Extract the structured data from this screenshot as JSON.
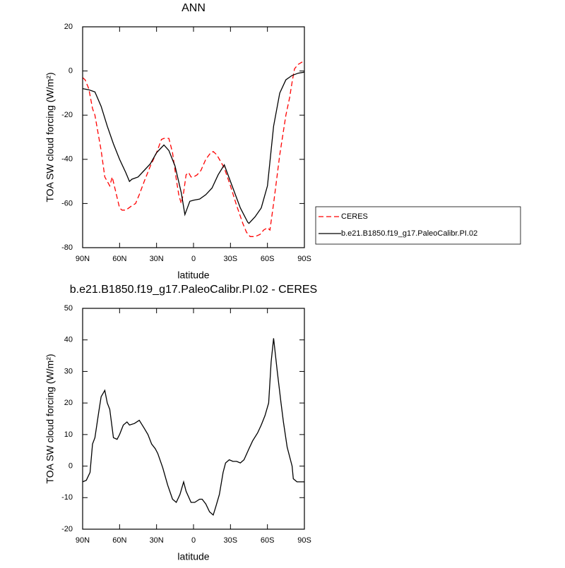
{
  "chart_data": [
    {
      "type": "line",
      "title": "ANN",
      "x_label": "latitude",
      "y_label": "TOA SW cloud forcing (W/m²)",
      "xlim": [
        90,
        -90
      ],
      "ylim": [
        20,
        -80
      ],
      "xticks": [
        {
          "value": 90,
          "label": "90N"
        },
        {
          "value": 60,
          "label": "60N"
        },
        {
          "value": 30,
          "label": "30N"
        },
        0,
        {
          "value": -30,
          "label": "30S"
        },
        {
          "value": -60,
          "label": "60S"
        },
        {
          "value": -90,
          "label": "90S"
        }
      ],
      "yticks": [
        20,
        0,
        -20,
        -40,
        -60,
        -80
      ],
      "legend": "right",
      "series": [
        {
          "name": "CERES",
          "color": "#ff0000",
          "dash": true,
          "x": [
            90,
            88,
            85,
            82,
            80,
            75,
            72,
            70,
            68,
            66,
            63,
            60,
            58,
            55,
            50,
            47,
            44,
            40,
            35,
            30,
            26,
            24,
            20,
            17,
            14,
            12,
            10,
            8,
            6,
            4,
            2,
            0,
            -3,
            -6,
            -10,
            -14,
            -16,
            -19,
            -22,
            -25,
            -30,
            -35,
            -40,
            -43,
            -46,
            -50,
            -54,
            -57,
            -60,
            -62,
            -65,
            -70,
            -75,
            -78,
            -80,
            -82,
            -85,
            -88,
            -90
          ],
          "values": [
            -3,
            -4,
            -8,
            -17,
            -20,
            -36,
            -48,
            -50,
            -52,
            -48,
            -55,
            -62,
            -63,
            -63,
            -61,
            -60,
            -56,
            -50,
            -43,
            -37,
            -31,
            -30.5,
            -30.5,
            -37,
            -49,
            -56,
            -60,
            -55,
            -47,
            -46,
            -48,
            -48,
            -47,
            -45,
            -40,
            -37,
            -36.5,
            -38,
            -41,
            -44,
            -52,
            -61,
            -69,
            -73,
            -75,
            -75,
            -74,
            -72,
            -71,
            -72,
            -60,
            -38,
            -20,
            -12,
            -5,
            1,
            3,
            4,
            4.5
          ]
        },
        {
          "name": "b.e21.B1850.f19_g17.PaleoCalibr.PI.02",
          "color": "#000000",
          "dash": false,
          "x": [
            90,
            85,
            80,
            75,
            70,
            65,
            60,
            55,
            52,
            50,
            45,
            40,
            35,
            30,
            24,
            20,
            15,
            10,
            7,
            5,
            3,
            0,
            -5,
            -10,
            -15,
            -20,
            -25,
            -30,
            -38,
            -44,
            -45,
            -50,
            -55,
            -60,
            -65,
            -70,
            -75,
            -80,
            -85,
            -90
          ],
          "values": [
            -8,
            -8.5,
            -9.5,
            -16,
            -25,
            -33,
            -40,
            -46,
            -50,
            -49,
            -48,
            -45,
            -42,
            -37,
            -33.5,
            -36,
            -43,
            -55,
            -65,
            -62,
            -59,
            -58.5,
            -58,
            -56,
            -53,
            -47,
            -42.5,
            -50,
            -62,
            -68.5,
            -69,
            -66,
            -62,
            -52,
            -25,
            -10,
            -4,
            -2,
            -1,
            -0.5
          ]
        }
      ]
    },
    {
      "type": "line",
      "title": "b.e21.B1850.f19_g17.PaleoCalibr.PI.02 - CERES",
      "x_label": "latitude",
      "y_label": "TOA SW cloud forcing (W/m²)",
      "xlim": [
        90,
        -90
      ],
      "ylim": [
        50,
        -20
      ],
      "xticks": [
        {
          "value": 90,
          "label": "90N"
        },
        {
          "value": 60,
          "label": "60N"
        },
        {
          "value": 30,
          "label": "30N"
        },
        0,
        {
          "value": -30,
          "label": "30S"
        },
        {
          "value": -60,
          "label": "60S"
        },
        {
          "value": -90,
          "label": "90S"
        }
      ],
      "yticks": [
        50,
        40,
        30,
        20,
        10,
        0,
        -10,
        -20
      ],
      "color": "#000000",
      "x": [
        90,
        87,
        84,
        82,
        80,
        77,
        75,
        72,
        70,
        68,
        65,
        62,
        60,
        57,
        54,
        52,
        48,
        44,
        40,
        37,
        34,
        31,
        29,
        25,
        21,
        17,
        14,
        11,
        8,
        6,
        2,
        -1,
        -5,
        -7,
        -10,
        -13,
        -16,
        -18,
        -21,
        -24,
        -26,
        -29,
        -32,
        -35,
        -38,
        -41,
        -45,
        -48,
        -52,
        -55,
        -58,
        -61,
        -63,
        -65,
        -68,
        -71,
        -73,
        -76,
        -80,
        -81,
        -84,
        -87,
        -90
      ],
      "values": [
        -5,
        -4.5,
        -2,
        7,
        9,
        17,
        22,
        24,
        20,
        18,
        9,
        8.5,
        10,
        13,
        14,
        13,
        13.5,
        14.5,
        12,
        10,
        7,
        5.5,
        4,
        -0.5,
        -6,
        -10.5,
        -11.5,
        -9,
        -5,
        -8,
        -11.5,
        -11.5,
        -10.5,
        -10.5,
        -12,
        -14.5,
        -15.5,
        -13,
        -9,
        -2,
        1,
        2,
        1.5,
        1.5,
        1,
        2,
        5.5,
        8,
        10.5,
        13,
        16,
        20,
        33,
        40.5,
        30,
        20,
        14,
        6,
        0,
        -4,
        -5,
        -5,
        -5
      ]
    }
  ]
}
